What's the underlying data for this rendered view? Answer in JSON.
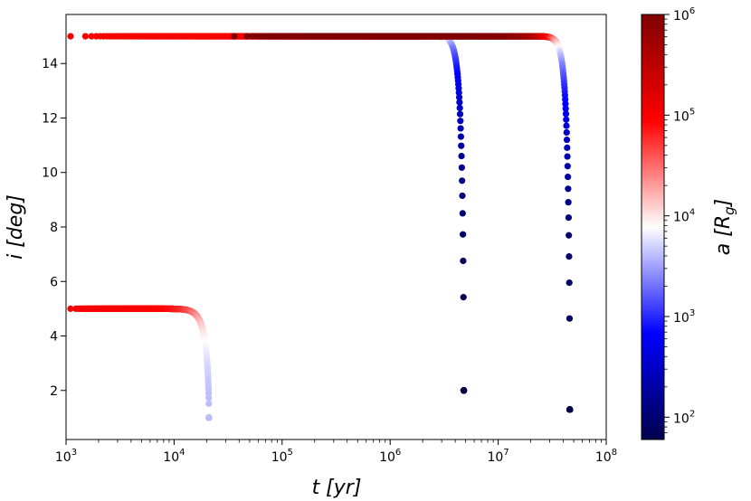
{
  "chart_data": {
    "type": "scatter",
    "title": "",
    "xlabel": "t [yr]",
    "ylabel": "i [deg]",
    "xscale": "log",
    "xlim": [
      1000,
      100000000
    ],
    "ylim": [
      0.2,
      15.8
    ],
    "x_ticks": [
      {
        "value": 1000,
        "mantissa": "10",
        "exp": "3"
      },
      {
        "value": 10000,
        "mantissa": "10",
        "exp": "4"
      },
      {
        "value": 100000,
        "mantissa": "10",
        "exp": "5"
      },
      {
        "value": 1000000,
        "mantissa": "10",
        "exp": "6"
      },
      {
        "value": 10000000,
        "mantissa": "10",
        "exp": "7"
      },
      {
        "value": 100000000,
        "mantissa": "10",
        "exp": "8"
      }
    ],
    "y_ticks": [
      2,
      4,
      6,
      8,
      10,
      12,
      14
    ],
    "grid": false,
    "colorbar": {
      "label": "a [R_g]",
      "scale": "log",
      "range": [
        60,
        1000000
      ],
      "colormap": "seismic",
      "ticks": [
        {
          "value": 100,
          "mantissa": "10",
          "exp": "2"
        },
        {
          "value": 1000,
          "mantissa": "10",
          "exp": "3"
        },
        {
          "value": 10000,
          "mantissa": "10",
          "exp": "4"
        },
        {
          "value": 100000,
          "mantissa": "10",
          "exp": "5"
        },
        {
          "value": 1000000,
          "mantissa": "10",
          "exp": "6"
        }
      ]
    },
    "series": [
      {
        "i0": 5,
        "a0": 100000,
        "t_start": 1100,
        "t_end": 21000,
        "i_end": 1.0,
        "a_end": 4000,
        "knee_power": 8
      },
      {
        "i0": 15,
        "a0": 100000,
        "t_start": 1100,
        "t_end": 4800000,
        "i_end": 2.0,
        "a_end": 60,
        "knee_power": 12
      },
      {
        "i0": 15,
        "a0": 1000000,
        "t_start": 36000,
        "t_end": 46000000,
        "i_end": 1.3,
        "a_end": 60,
        "knee_power": 12
      }
    ]
  }
}
